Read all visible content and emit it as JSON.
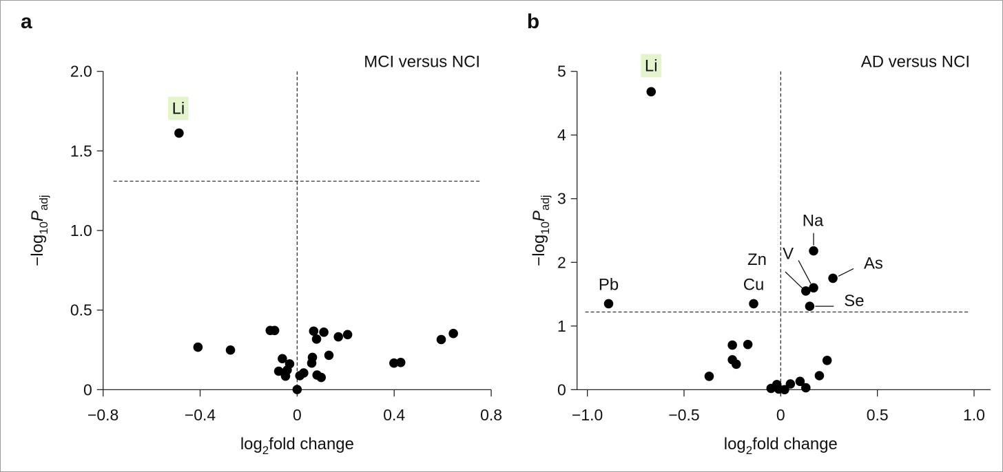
{
  "chart_data": [
    {
      "type": "scatter",
      "panel_letter": "a",
      "title": "MCI versus NCI",
      "xlabel": {
        "main": "log",
        "sub": "2",
        "rest": "fold change"
      },
      "ylabel": {
        "pre": "−log",
        "sub1": "10",
        "p": "P",
        "sub2": "adj"
      },
      "xlim": [
        -0.8,
        0.8
      ],
      "ylim": [
        0,
        2.0
      ],
      "xticks": [
        -0.8,
        -0.4,
        0,
        0.4,
        0.8
      ],
      "xtick_labels": [
        "−0.8",
        "−0.4",
        "0",
        "0.4",
        "0.8"
      ],
      "yticks": [
        0,
        0.5,
        1.0,
        1.5,
        2.0
      ],
      "ytick_labels": [
        "0",
        "0.5",
        "1.0",
        "1.5",
        "2.0"
      ],
      "threshold_y": 1.31,
      "vline_x": 0,
      "points": [
        {
          "x": -0.487,
          "y": 1.612,
          "label": "Li",
          "highlight": true
        },
        {
          "x": -0.409,
          "y": 0.267
        },
        {
          "x": -0.275,
          "y": 0.249
        },
        {
          "x": -0.111,
          "y": 0.372
        },
        {
          "x": -0.093,
          "y": 0.372
        },
        {
          "x": 0.068,
          "y": 0.368
        },
        {
          "x": 0.11,
          "y": 0.361
        },
        {
          "x": 0.08,
          "y": 0.318
        },
        {
          "x": 0.17,
          "y": 0.332
        },
        {
          "x": 0.208,
          "y": 0.346
        },
        {
          "x": 0.594,
          "y": 0.315
        },
        {
          "x": 0.644,
          "y": 0.353
        },
        {
          "x": -0.061,
          "y": 0.195
        },
        {
          "x": -0.031,
          "y": 0.162
        },
        {
          "x": -0.041,
          "y": 0.123
        },
        {
          "x": -0.076,
          "y": 0.116
        },
        {
          "x": -0.048,
          "y": 0.085
        },
        {
          "x": 0.063,
          "y": 0.203
        },
        {
          "x": 0.06,
          "y": 0.167
        },
        {
          "x": 0.131,
          "y": 0.216
        },
        {
          "x": 0.399,
          "y": 0.167
        },
        {
          "x": 0.427,
          "y": 0.171
        },
        {
          "x": 0.011,
          "y": 0.088
        },
        {
          "x": 0.027,
          "y": 0.105
        },
        {
          "x": 0.082,
          "y": 0.092
        },
        {
          "x": 0.099,
          "y": 0.077
        },
        {
          "x": 0.0,
          "y": 0.001
        }
      ]
    },
    {
      "type": "scatter",
      "panel_letter": "b",
      "title": "AD versus NCI",
      "xlabel": {
        "main": "log",
        "sub": "2",
        "rest": "fold change"
      },
      "ylabel": {
        "pre": "−log",
        "sub1": "10",
        "p": "P",
        "sub2": "adj"
      },
      "xlim": [
        -1.0,
        1.0
      ],
      "ylim": [
        0,
        5
      ],
      "xticks": [
        -1.0,
        -0.5,
        0,
        0.5,
        1.0
      ],
      "xtick_labels": [
        "−1.0",
        "−0.5",
        "0",
        "0.5",
        "1.0"
      ],
      "yticks": [
        0,
        1,
        2,
        3,
        4,
        5
      ],
      "ytick_labels": [
        "0",
        "1",
        "2",
        "3",
        "4",
        "5"
      ],
      "threshold_y": 1.22,
      "vline_x": 0,
      "points": [
        {
          "x": -0.67,
          "y": 4.68,
          "label": "Li",
          "highlight": true
        },
        {
          "x": -0.89,
          "y": 1.35,
          "label": "Pb"
        },
        {
          "x": -0.14,
          "y": 1.35,
          "label": "Cu"
        },
        {
          "x": 0.17,
          "y": 2.18,
          "label": "Na"
        },
        {
          "x": 0.27,
          "y": 1.75,
          "label": "As"
        },
        {
          "x": 0.17,
          "y": 1.6,
          "label": "V"
        },
        {
          "x": 0.13,
          "y": 1.55,
          "label": "Zn"
        },
        {
          "x": 0.15,
          "y": 1.31,
          "label": "Se"
        },
        {
          "x": -0.25,
          "y": 0.7
        },
        {
          "x": -0.17,
          "y": 0.71
        },
        {
          "x": -0.25,
          "y": 0.47
        },
        {
          "x": -0.23,
          "y": 0.4
        },
        {
          "x": -0.37,
          "y": 0.21
        },
        {
          "x": 0.24,
          "y": 0.46
        },
        {
          "x": 0.2,
          "y": 0.22
        },
        {
          "x": 0.1,
          "y": 0.13
        },
        {
          "x": 0.13,
          "y": 0.03
        },
        {
          "x": 0.05,
          "y": 0.09
        },
        {
          "x": -0.05,
          "y": 0.02
        },
        {
          "x": -0.02,
          "y": 0.08
        },
        {
          "x": 0.02,
          "y": 0.0
        },
        {
          "x": -0.01,
          "y": 0.01
        }
      ]
    }
  ]
}
